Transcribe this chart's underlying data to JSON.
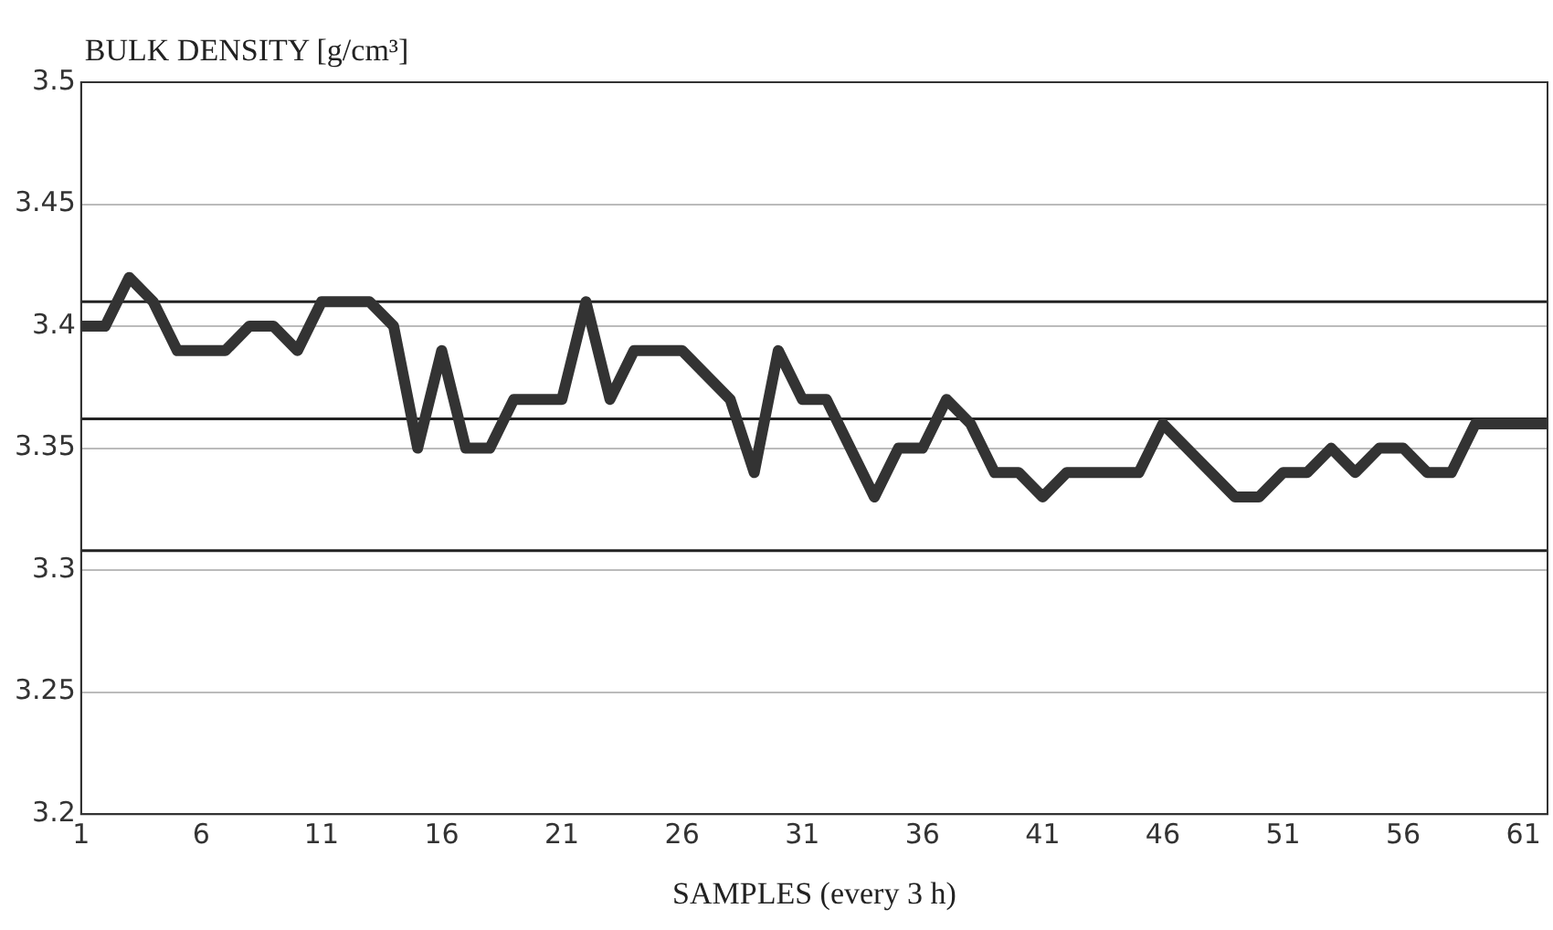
{
  "chart_data": {
    "type": "line",
    "ylabel": "BULK DENSITY [g/cm³]",
    "xlabel": "SAMPLES (every 3 h)",
    "x": [
      1,
      2,
      3,
      4,
      5,
      6,
      7,
      8,
      9,
      10,
      11,
      12,
      13,
      14,
      15,
      16,
      17,
      18,
      19,
      20,
      21,
      22,
      23,
      24,
      25,
      26,
      27,
      28,
      29,
      30,
      31,
      32,
      33,
      34,
      35,
      36,
      37,
      38,
      39,
      40,
      41,
      42,
      43,
      44,
      45,
      46,
      47,
      48,
      49,
      50,
      51,
      52,
      53,
      54,
      55,
      56,
      57,
      58,
      59,
      60,
      61,
      62
    ],
    "series": [
      {
        "color": "#333333",
        "values": [
          3.4,
          3.4,
          3.42,
          3.41,
          3.39,
          3.39,
          3.39,
          3.4,
          3.4,
          3.39,
          3.41,
          3.41,
          3.41,
          3.4,
          3.35,
          3.39,
          3.35,
          3.35,
          3.37,
          3.37,
          3.37,
          3.41,
          3.37,
          3.39,
          3.39,
          3.39,
          3.38,
          3.37,
          3.34,
          3.39,
          3.37,
          3.37,
          3.35,
          3.33,
          3.35,
          3.35,
          3.37,
          3.36,
          3.34,
          3.34,
          3.33,
          3.34,
          3.34,
          3.34,
          3.34,
          3.36,
          3.35,
          3.34,
          3.33,
          3.33,
          3.34,
          3.34,
          3.35,
          3.34,
          3.35,
          3.35,
          3.34,
          3.34,
          3.36,
          3.36,
          3.36,
          3.36
        ]
      }
    ],
    "xlim": [
      1,
      62
    ],
    "xticks": [
      1,
      6,
      11,
      16,
      21,
      26,
      31,
      36,
      41,
      46,
      51,
      56,
      61
    ],
    "ylim": [
      3.2,
      3.5
    ],
    "yticks": [
      3.2,
      3.25,
      3.3,
      3.35,
      3.4,
      3.45,
      3.5
    ],
    "ref_lines": [
      {
        "axis": "y",
        "value": 3.41,
        "color": "#222222"
      },
      {
        "axis": "y",
        "value": 3.362,
        "color": "#222222"
      },
      {
        "axis": "y",
        "value": 3.308,
        "color": "#222222"
      }
    ],
    "grid": "y",
    "legend": false,
    "marker": "none",
    "line_style": "solid"
  }
}
